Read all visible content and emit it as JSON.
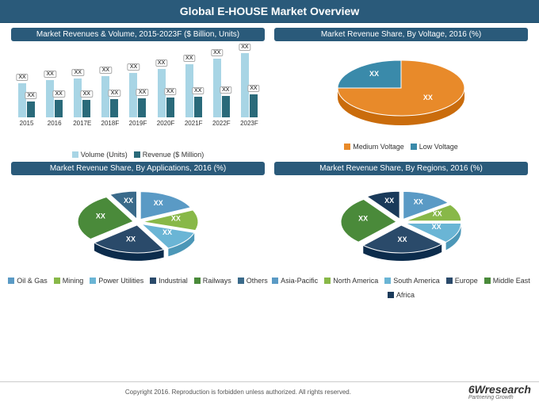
{
  "title": "Global E-HOUSE Market Overview",
  "footer": {
    "copyright": "Copyright 2016. Reproduction is forbidden unless authorized. All rights reserved.",
    "logo_main": "6Wresearch",
    "logo_sub": "Partnering Growth"
  },
  "bar_chart": {
    "title": "Market Revenues & Volume, 2015-2023F ($ Billion, Units)",
    "categories": [
      "2015",
      "2016",
      "2017E",
      "2018F",
      "2019F",
      "2020F",
      "2021F",
      "2022F",
      "2023F"
    ],
    "series": [
      {
        "name": "Volume (Units)",
        "color": "#a8d5e5",
        "values": [
          48,
          52,
          54,
          58,
          62,
          68,
          74,
          82,
          90
        ]
      },
      {
        "name": "Revenue ($ Million)",
        "color": "#2a6a7a",
        "values": [
          22,
          24,
          25,
          26,
          27,
          28,
          29,
          30,
          32
        ]
      }
    ],
    "value_label": "XX",
    "y_max": 100
  },
  "voltage_pie": {
    "title": "Market Revenue Share, By Voltage, 2016 (%)",
    "slices": [
      {
        "name": "Medium Voltage",
        "value": 75,
        "color": "#e88a2a"
      },
      {
        "name": "Low Voltage",
        "value": 25,
        "color": "#3a8aaa"
      }
    ],
    "value_label": "XX"
  },
  "app_pie": {
    "title": "Market Revenue Share, By Applications, 2016 (%)",
    "slices": [
      {
        "name": "Oil & Gas",
        "value": 18,
        "color": "#5a9ac5"
      },
      {
        "name": "Mining",
        "value": 12,
        "color": "#88b848"
      },
      {
        "name": "Power Utilities",
        "value": 12,
        "color": "#6ab5d5"
      },
      {
        "name": "Industrial",
        "value": 22,
        "color": "#2a4a6a"
      },
      {
        "name": "Railways",
        "value": 28,
        "color": "#4a8a3a"
      },
      {
        "name": "Others",
        "value": 8,
        "color": "#3a6a8a"
      }
    ],
    "value_label": "XX"
  },
  "region_pie": {
    "title": "Market Revenue Share, By Regions, 2016 (%)",
    "slices": [
      {
        "name": "Asia-Pacific",
        "value": 15,
        "color": "#5a9ac5"
      },
      {
        "name": "North America",
        "value": 10,
        "color": "#88b848"
      },
      {
        "name": "South America",
        "value": 12,
        "color": "#6ab5d5"
      },
      {
        "name": "Europe",
        "value": 25,
        "color": "#2a4a6a"
      },
      {
        "name": "Middle East",
        "value": 28,
        "color": "#4a8a3a"
      },
      {
        "name": "Africa",
        "value": 10,
        "color": "#1a3a5a"
      }
    ],
    "value_label": "XX"
  }
}
